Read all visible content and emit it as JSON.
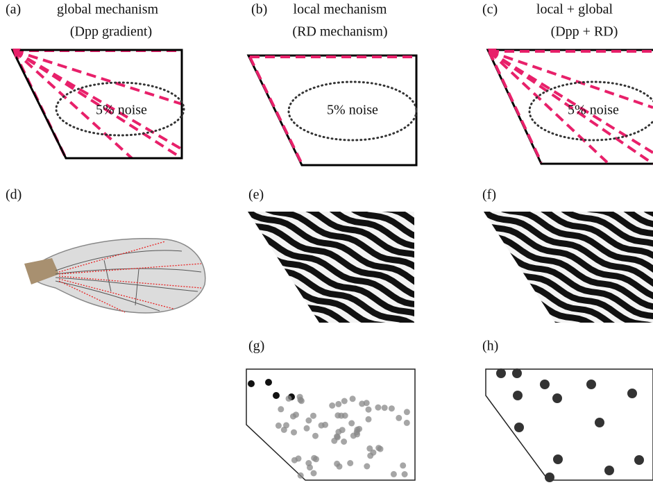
{
  "panels": [
    {
      "label": "(a)",
      "title": "global mechanism",
      "subtitle": "(Dpp gradient)",
      "note": "5% noise"
    },
    {
      "label": "(b)",
      "title": "local mechanism",
      "subtitle": "(RD mechanism)",
      "note": "5% noise"
    },
    {
      "label": "(c)",
      "title": "local + global",
      "subtitle": "(Dpp + RD)",
      "note": "5% noise"
    },
    {
      "label": "(d)"
    },
    {
      "label": "(e)"
    },
    {
      "label": "(f)"
    },
    {
      "label": "(g)"
    },
    {
      "label": "(h)"
    }
  ]
}
